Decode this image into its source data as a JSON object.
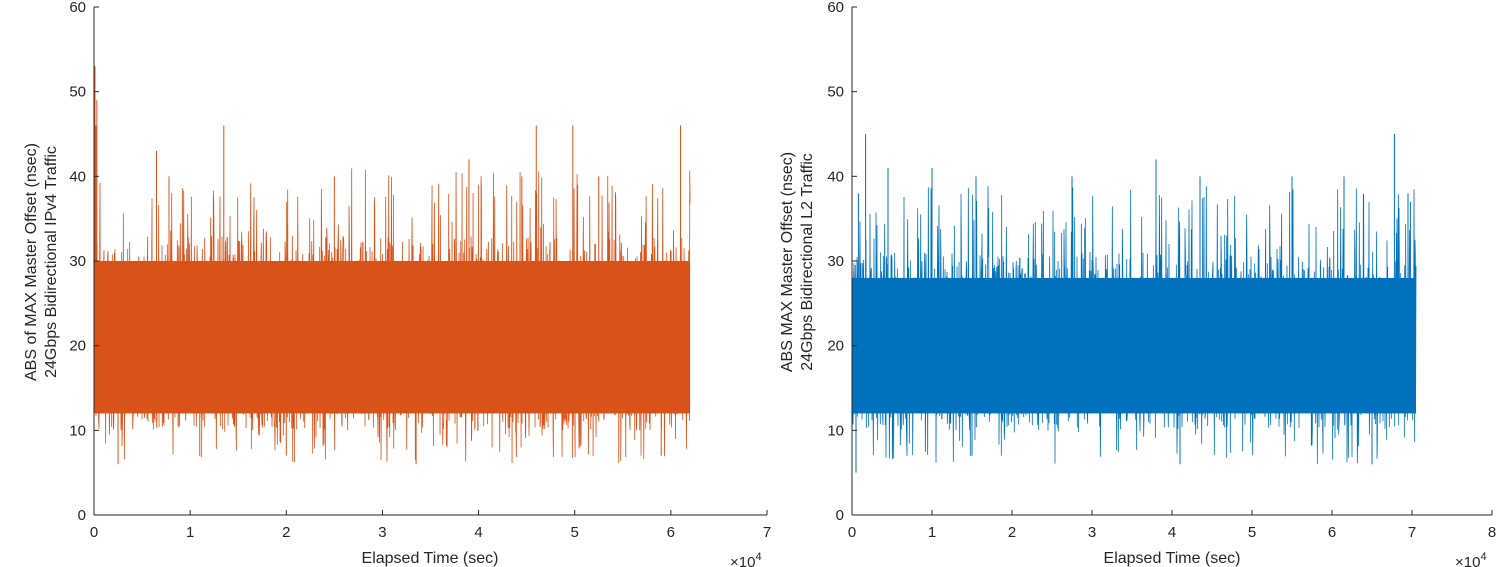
{
  "chart_data": [
    {
      "type": "line",
      "title": "",
      "xlabel": "Elapsed Time (sec)",
      "ylabel_lines": [
        "ABS of MAX Master Offset (nsec)",
        "24Gbps Bidirectional IPv4 Traffic"
      ],
      "x_multiplier_label": "×10",
      "x_multiplier_exponent": "4",
      "xlim": [
        0,
        7
      ],
      "ylim": [
        0,
        60
      ],
      "x_ticks": [
        "0",
        "1",
        "2",
        "3",
        "4",
        "5",
        "6",
        "7"
      ],
      "y_ticks": [
        "0",
        "10",
        "20",
        "30",
        "40",
        "50",
        "60"
      ],
      "color": "#D95319",
      "series": [
        {
          "x_range": [
            0,
            6.2
          ],
          "band": [
            12,
            30
          ],
          "dense_range": [
            10,
            33
          ],
          "low_min": 6,
          "spikes": [
            [
              0.01,
              53
            ],
            [
              0.03,
              49
            ],
            [
              0.02,
              46
            ],
            [
              0.65,
              43
            ],
            [
              0.78,
              40
            ],
            [
              1.35,
              46
            ],
            [
              2.5,
              40
            ],
            [
              3.9,
              42
            ],
            [
              4.45,
              40
            ],
            [
              4.6,
              46
            ],
            [
              4.98,
              46
            ],
            [
              5.03,
              39
            ],
            [
              5.25,
              40
            ],
            [
              6.1,
              46
            ]
          ],
          "dips": [
            [
              0.25,
              6
            ],
            [
              3.35,
              6
            ],
            [
              1.1,
              7
            ],
            [
              5.9,
              7
            ],
            [
              2.0,
              7
            ]
          ]
        }
      ]
    },
    {
      "type": "line",
      "title": "",
      "xlabel": "Elapsed Time (sec)",
      "ylabel_lines": [
        "ABS MAX Master Offset (nsec)",
        "24Gbps Bidirectional L2 Traffic"
      ],
      "x_multiplier_label": "×10",
      "x_multiplier_exponent": "4",
      "xlim": [
        0,
        8
      ],
      "ylim": [
        0,
        60
      ],
      "x_ticks": [
        "0",
        "1",
        "2",
        "3",
        "4",
        "5",
        "6",
        "7",
        "8"
      ],
      "y_ticks": [
        "0",
        "10",
        "20",
        "30",
        "40",
        "50",
        "60"
      ],
      "color": "#0072BD",
      "series": [
        {
          "x_range": [
            0,
            7.05
          ],
          "band": [
            12,
            28
          ],
          "dense_range": [
            10,
            31
          ],
          "low_min": 6,
          "spikes": [
            [
              0.17,
              45
            ],
            [
              0.08,
              38
            ],
            [
              0.45,
              41
            ],
            [
              1.0,
              41
            ],
            [
              1.55,
              40
            ],
            [
              2.75,
              40
            ],
            [
              3.8,
              42
            ],
            [
              4.35,
              40
            ],
            [
              5.5,
              40
            ],
            [
              6.15,
              40
            ],
            [
              6.78,
              45
            ],
            [
              6.95,
              38
            ],
            [
              6.98,
              37
            ]
          ],
          "dips": [
            [
              0.05,
              5
            ],
            [
              1.5,
              7
            ],
            [
              4.1,
              6
            ],
            [
              6.5,
              6
            ]
          ]
        }
      ]
    }
  ]
}
